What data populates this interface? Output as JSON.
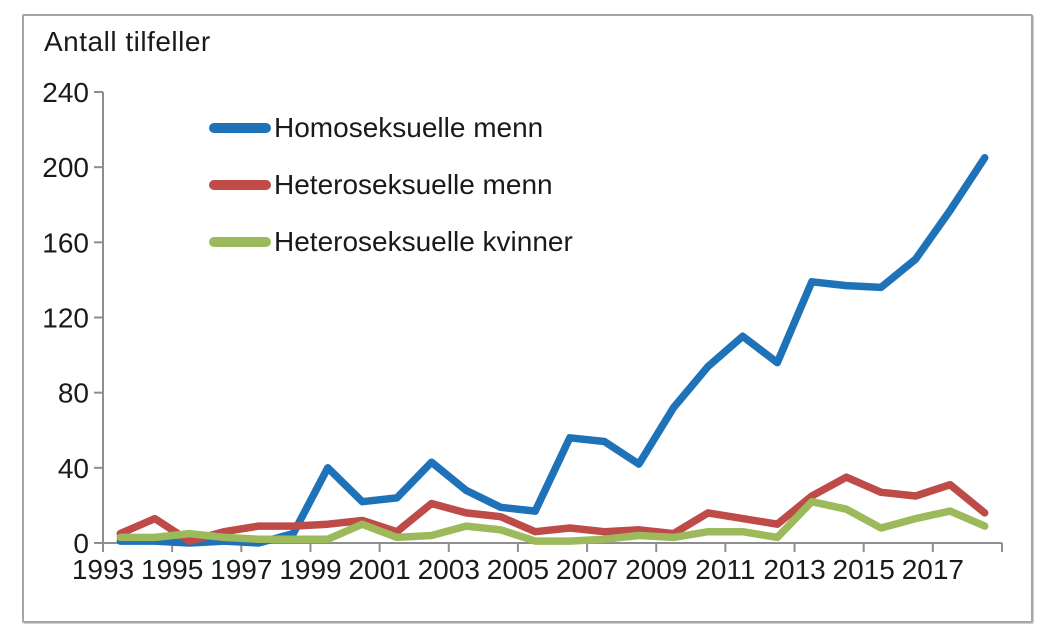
{
  "chart_data": {
    "type": "line",
    "title": "Antall tilfeller",
    "xlabel": "",
    "ylabel": "Antall tilfeller",
    "x": [
      1993,
      1994,
      1995,
      1996,
      1997,
      1998,
      1999,
      2000,
      2001,
      2002,
      2003,
      2004,
      2005,
      2006,
      2007,
      2008,
      2009,
      2010,
      2011,
      2012,
      2013,
      2014,
      2015,
      2016,
      2017,
      2018
    ],
    "series": [
      {
        "name": "Homoseksuelle menn",
        "color": "#1E72B8",
        "values": [
          1,
          1,
          0,
          1,
          0,
          5,
          40,
          22,
          24,
          43,
          28,
          19,
          17,
          56,
          54,
          42,
          72,
          94,
          110,
          96,
          139,
          137,
          136,
          151,
          177,
          205
        ]
      },
      {
        "name": "Heteroseksuelle menn",
        "color": "#BE4B48",
        "values": [
          5,
          13,
          1,
          6,
          9,
          9,
          10,
          12,
          6,
          21,
          16,
          14,
          6,
          8,
          6,
          7,
          5,
          16,
          13,
          10,
          25,
          35,
          27,
          25,
          31,
          16
        ]
      },
      {
        "name": "Heteroseksuelle kvinner",
        "color": "#9CBA5B",
        "values": [
          3,
          3,
          5,
          3,
          2,
          2,
          2,
          10,
          3,
          4,
          9,
          7,
          1,
          1,
          2,
          4,
          3,
          6,
          6,
          3,
          22,
          18,
          8,
          13,
          17,
          9
        ]
      }
    ],
    "ylim": [
      0,
      240
    ],
    "ytick_labels": [
      "0",
      "40",
      "80",
      "120",
      "160",
      "200",
      "240"
    ],
    "xtick_labels": [
      "1993",
      "1995",
      "1997",
      "1999",
      "2001",
      "2003",
      "2005",
      "2007",
      "2009",
      "2011",
      "2013",
      "2015",
      "2017"
    ],
    "grid": false,
    "legend_position": "upper-left-inside"
  },
  "style": {
    "axis_color": "#8e8e8e",
    "text_color": "#1a1a1a",
    "frame_border_color": "#a6a6a6"
  }
}
